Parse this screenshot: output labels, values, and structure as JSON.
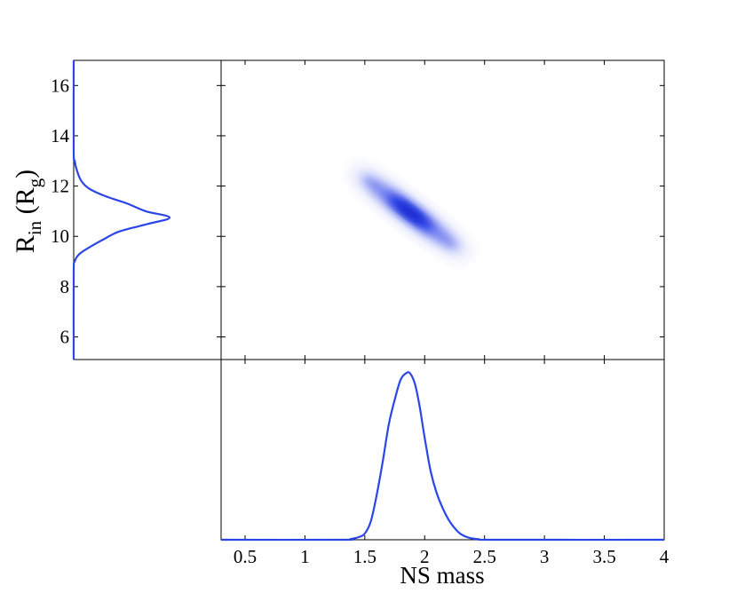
{
  "chart_data": [
    {
      "type": "heatmap",
      "panel": "joint-posterior",
      "x_range": [
        0.3,
        4
      ],
      "y_range": [
        5.1,
        17
      ],
      "color": "#1a33e6",
      "ellipse": {
        "center": [
          1.88,
          10.95
        ],
        "core_extent": {
          "x": [
            1.68,
            2.1
          ],
          "y": [
            10.3,
            11.7
          ]
        },
        "outer_extent": {
          "x": [
            1.4,
            2.4
          ],
          "y": [
            9.4,
            13.0
          ]
        },
        "correlation": "negative"
      },
      "grid": false
    },
    {
      "type": "line",
      "panel": "marginal-rin",
      "ylabel": "R_in (R_g)",
      "ylabel_parts": {
        "base": "R",
        "sub1": "in",
        "paren_open": " (R",
        "sub2": "g",
        "paren_close": ")"
      },
      "yticks": [
        "6",
        "8",
        "10",
        "12",
        "14",
        "16"
      ],
      "y_range": [
        5.1,
        17
      ],
      "color": "#2b46e8",
      "series": [
        {
          "name": "",
          "y": [
            5.1,
            8.5,
            9.0,
            9.3,
            9.6,
            9.9,
            10.2,
            10.5,
            10.75,
            11.0,
            11.3,
            11.6,
            11.9,
            12.2,
            12.6,
            13.0,
            13.4,
            17
          ],
          "density": [
            0,
            0,
            0.01,
            0.06,
            0.18,
            0.32,
            0.48,
            0.78,
            1.0,
            0.75,
            0.56,
            0.33,
            0.16,
            0.08,
            0.035,
            0.01,
            0,
            0
          ]
        }
      ]
    },
    {
      "type": "line",
      "panel": "marginal-mass",
      "xlabel": "NS mass",
      "xticks": [
        "0.5",
        "1",
        "1.5",
        "2",
        "2.5",
        "3",
        "3.5",
        "4"
      ],
      "x_range": [
        0.3,
        4
      ],
      "color": "#2b46e8",
      "series": [
        {
          "name": "",
          "x": [
            0.3,
            1.3,
            1.38,
            1.45,
            1.5,
            1.55,
            1.6,
            1.65,
            1.7,
            1.75,
            1.8,
            1.85,
            1.88,
            1.92,
            1.96,
            2.0,
            2.05,
            2.1,
            2.15,
            2.2,
            2.25,
            2.3,
            2.37,
            2.45,
            2.6,
            4.0
          ],
          "density": [
            0,
            0,
            0.004,
            0.016,
            0.037,
            0.11,
            0.27,
            0.47,
            0.69,
            0.84,
            0.96,
            1.0,
            0.995,
            0.93,
            0.79,
            0.61,
            0.41,
            0.28,
            0.19,
            0.12,
            0.07,
            0.035,
            0.012,
            0.003,
            0,
            0
          ]
        }
      ]
    }
  ]
}
